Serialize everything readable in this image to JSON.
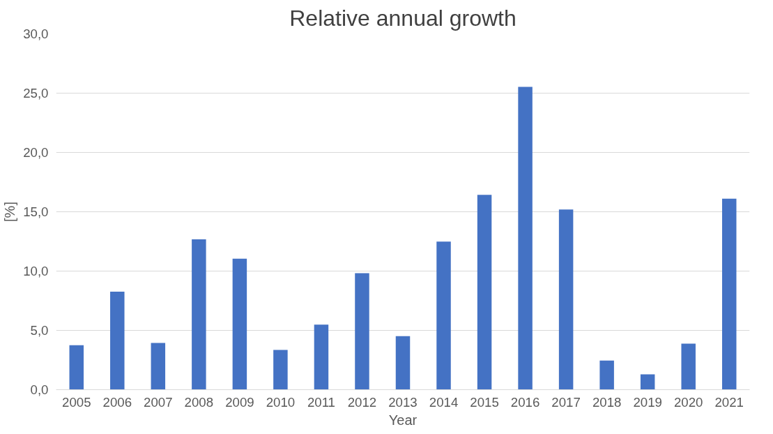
{
  "chart_data": {
    "type": "bar",
    "title": "Relative annual growth",
    "xlabel": "Year",
    "ylabel": "[%]",
    "categories": [
      "2005",
      "2006",
      "2007",
      "2008",
      "2009",
      "2010",
      "2011",
      "2012",
      "2013",
      "2014",
      "2015",
      "2016",
      "2017",
      "2018",
      "2019",
      "2020",
      "2021"
    ],
    "values": [
      3.75,
      8.27,
      3.94,
      12.67,
      11.05,
      3.36,
      5.49,
      9.83,
      4.52,
      12.48,
      16.42,
      25.53,
      15.19,
      2.46,
      1.29,
      3.88,
      16.1
    ],
    "color": "#4472c4",
    "ylim": [
      0,
      30
    ],
    "yticks": [
      {
        "value": 0,
        "label": "0,0"
      },
      {
        "value": 5,
        "label": "5,0"
      },
      {
        "value": 10,
        "label": "10,0"
      },
      {
        "value": 15,
        "label": "15,0"
      },
      {
        "value": 20,
        "label": "20,0"
      },
      {
        "value": 25,
        "label": "25,0"
      },
      {
        "value": 30,
        "label": "30,0"
      }
    ],
    "grid": "y"
  }
}
